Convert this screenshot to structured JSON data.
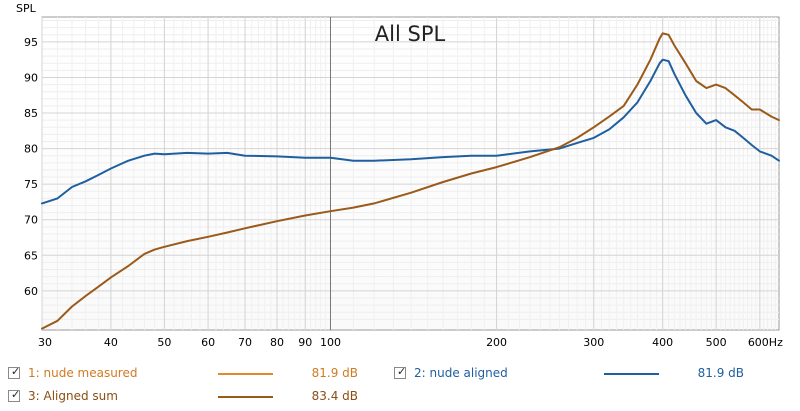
{
  "chart_data": {
    "type": "line",
    "title": "All SPL",
    "ylabel": "SPL",
    "x_scale": "log",
    "xlim": [
      30,
      650
    ],
    "ylim": [
      54.5,
      98.5
    ],
    "x_ticks": [
      30,
      40,
      50,
      60,
      70,
      80,
      90,
      100,
      200,
      300,
      400,
      500,
      600
    ],
    "x_tick_labels": [
      "30",
      "40",
      "50",
      "60",
      "70",
      "80",
      "90",
      "100",
      "200",
      "300",
      "400",
      "500",
      "600Hz"
    ],
    "y_ticks": [
      60,
      65,
      70,
      75,
      80,
      85,
      90,
      95
    ],
    "grid": true,
    "series": [
      {
        "name": "2: nude aligned",
        "color": "#1f5fa0",
        "x": [
          30,
          32,
          34,
          36,
          38,
          40,
          43,
          46,
          48,
          50,
          55,
          60,
          65,
          70,
          80,
          90,
          100,
          110,
          120,
          140,
          160,
          180,
          200,
          230,
          260,
          280,
          300,
          320,
          340,
          360,
          380,
          395,
          400,
          410,
          420,
          440,
          460,
          480,
          500,
          520,
          540,
          560,
          580,
          600,
          630,
          650
        ],
        "y": [
          72.3,
          73.0,
          74.6,
          75.4,
          76.3,
          77.2,
          78.3,
          79.0,
          79.3,
          79.2,
          79.4,
          79.3,
          79.4,
          79.0,
          78.9,
          78.7,
          78.7,
          78.3,
          78.3,
          78.5,
          78.8,
          79.0,
          79.0,
          79.6,
          80.0,
          80.8,
          81.5,
          82.7,
          84.4,
          86.5,
          89.5,
          92.0,
          92.5,
          92.3,
          90.5,
          87.5,
          85.0,
          83.5,
          84.0,
          83.0,
          82.5,
          81.5,
          80.5,
          79.6,
          79.0,
          78.3
        ]
      },
      {
        "name": "3: Aligned sum",
        "color": "#9a5a1a",
        "x": [
          30,
          32,
          34,
          36,
          38,
          40,
          43,
          46,
          48,
          50,
          55,
          60,
          65,
          70,
          80,
          90,
          100,
          110,
          120,
          140,
          160,
          180,
          200,
          230,
          260,
          280,
          300,
          320,
          340,
          360,
          380,
          395,
          400,
          410,
          420,
          440,
          460,
          480,
          500,
          520,
          540,
          560,
          580,
          600,
          630,
          650
        ],
        "y": [
          54.7,
          55.8,
          57.8,
          59.3,
          60.6,
          61.9,
          63.5,
          65.2,
          65.8,
          66.2,
          67.0,
          67.6,
          68.2,
          68.8,
          69.8,
          70.6,
          71.2,
          71.7,
          72.3,
          73.8,
          75.3,
          76.5,
          77.4,
          78.8,
          80.2,
          81.5,
          83.0,
          84.5,
          86.0,
          89.0,
          92.5,
          95.5,
          96.2,
          96.0,
          94.5,
          92.0,
          89.5,
          88.5,
          89.0,
          88.5,
          87.5,
          86.5,
          85.5,
          85.5,
          84.5,
          84.0
        ]
      }
    ]
  },
  "legend": {
    "items": [
      {
        "label": "1: nude measured",
        "value": "81.9 dB",
        "color": "#e08a2a",
        "checked": "✓"
      },
      {
        "label": "2: nude aligned",
        "value": "81.9 dB",
        "color": "#1f5fa0",
        "checked": "✓"
      },
      {
        "label": "3: Aligned sum",
        "value": "83.4 dB",
        "color": "#9a5a1a",
        "checked": "✓"
      }
    ]
  }
}
